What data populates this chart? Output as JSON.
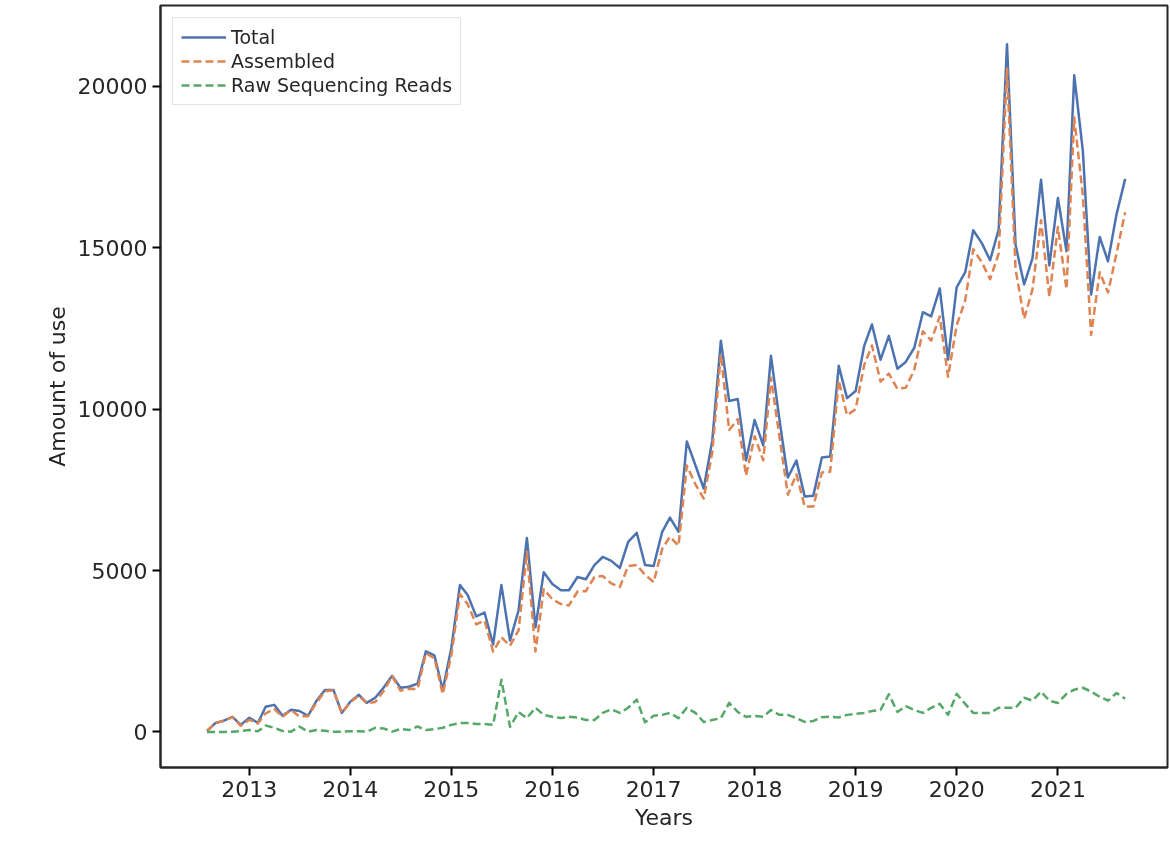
{
  "chart_data": {
    "type": "line",
    "xlabel": "Years",
    "ylabel": "Amount of use",
    "x": [
      "2012-08",
      "2012-09",
      "2012-10",
      "2012-11",
      "2012-12",
      "2013-01",
      "2013-02",
      "2013-03",
      "2013-04",
      "2013-05",
      "2013-06",
      "2013-07",
      "2013-08",
      "2013-09",
      "2013-10",
      "2013-11",
      "2013-12",
      "2014-01",
      "2014-02",
      "2014-03",
      "2014-04",
      "2014-05",
      "2014-06",
      "2014-07",
      "2014-08",
      "2014-09",
      "2014-10",
      "2014-11",
      "2014-12",
      "2015-01",
      "2015-02",
      "2015-03",
      "2015-04",
      "2015-05",
      "2015-06",
      "2015-07",
      "2015-08",
      "2015-09",
      "2015-10",
      "2015-11",
      "2015-12",
      "2016-01",
      "2016-02",
      "2016-03",
      "2016-04",
      "2016-05",
      "2016-06",
      "2016-07",
      "2016-08",
      "2016-09",
      "2016-10",
      "2016-11",
      "2016-12",
      "2017-01",
      "2017-02",
      "2017-03",
      "2017-04",
      "2017-05",
      "2017-06",
      "2017-07",
      "2017-08",
      "2017-09",
      "2017-10",
      "2017-11",
      "2017-12",
      "2018-01",
      "2018-02",
      "2018-03",
      "2018-04",
      "2018-05",
      "2018-06",
      "2018-07",
      "2018-08",
      "2018-09",
      "2018-10",
      "2018-11",
      "2018-12",
      "2019-01",
      "2019-02",
      "2019-03",
      "2019-04",
      "2019-05",
      "2019-06",
      "2019-07",
      "2019-08",
      "2019-09",
      "2019-10",
      "2019-11",
      "2019-12",
      "2020-01",
      "2020-02",
      "2020-03",
      "2020-04",
      "2020-05",
      "2020-06",
      "2020-07",
      "2020-08",
      "2020-09",
      "2020-10",
      "2020-11",
      "2020-12",
      "2021-01",
      "2021-02",
      "2021-03",
      "2021-04",
      "2021-05",
      "2021-06",
      "2021-07",
      "2021-08",
      "2021-09"
    ],
    "series": [
      {
        "name": "Total",
        "color": "#4c72b0",
        "line_style": "solid",
        "values": [
          30,
          280,
          350,
          470,
          220,
          440,
          280,
          780,
          840,
          500,
          690,
          650,
          500,
          970,
          1300,
          1300,
          590,
          940,
          1150,
          900,
          1060,
          1370,
          1740,
          1370,
          1400,
          1500,
          2500,
          2370,
          1300,
          2600,
          4550,
          4240,
          3580,
          3700,
          2710,
          4550,
          2830,
          3770,
          6010,
          3240,
          4950,
          4580,
          4390,
          4390,
          4800,
          4730,
          5170,
          5420,
          5300,
          5080,
          5890,
          6170,
          5170,
          5140,
          6200,
          6640,
          6200,
          9000,
          8260,
          7540,
          9030,
          12120,
          10250,
          10310,
          8410,
          9660,
          8880,
          11650,
          9660,
          7880,
          8410,
          7290,
          7320,
          8500,
          8530,
          11340,
          10340,
          10560,
          11960,
          12620,
          11530,
          12270,
          11250,
          11460,
          11900,
          13000,
          12870,
          13740,
          11530,
          13770,
          14240,
          15540,
          15140,
          14610,
          15570,
          21300,
          15080,
          13860,
          14670,
          17100,
          14450,
          16540,
          14890,
          20340,
          18000,
          13550,
          15330,
          14580,
          16040,
          17130
        ]
      },
      {
        "name": "Assembled",
        "color": "#dd8452",
        "line_style": "dashed",
        "values": [
          30,
          280,
          350,
          460,
          190,
          380,
          260,
          580,
          710,
          470,
          680,
          480,
          490,
          910,
          1260,
          1290,
          580,
          920,
          1130,
          890,
          930,
          1260,
          1730,
          1280,
          1340,
          1330,
          2440,
          2280,
          1170,
          2380,
          4270,
          3960,
          3330,
          3450,
          2490,
          2930,
          2670,
          3150,
          5580,
          2490,
          4420,
          4110,
          3960,
          3920,
          4350,
          4360,
          4800,
          4830,
          4600,
          4490,
          5140,
          5170,
          4870,
          4640,
          5670,
          6050,
          5770,
          8250,
          7670,
          7230,
          8660,
          11690,
          9350,
          9690,
          7940,
          9160,
          8410,
          10970,
          9130,
          7350,
          7980,
          6980,
          6980,
          8040,
          8060,
          10890,
          9810,
          10000,
          11370,
          11970,
          10850,
          11100,
          10630,
          10660,
          11220,
          12410,
          12120,
          12870,
          11000,
          12590,
          13370,
          14950,
          14550,
          14020,
          14820,
          20550,
          14330,
          12800,
          13700,
          15850,
          13480,
          15640,
          13710,
          19030,
          16630,
          12300,
          14240,
          13610,
          14830,
          16100
        ]
      },
      {
        "name": "Raw Sequencing Reads",
        "color": "#55a868",
        "line_style": "dashed",
        "values": [
          0,
          0,
          0,
          10,
          30,
          60,
          20,
          200,
          130,
          30,
          10,
          170,
          10,
          60,
          40,
          10,
          10,
          20,
          20,
          10,
          130,
          110,
          10,
          90,
          60,
          170,
          60,
          90,
          130,
          220,
          280,
          280,
          250,
          250,
          220,
          1620,
          160,
          620,
          430,
          750,
          530,
          470,
          430,
          470,
          450,
          370,
          370,
          590,
          700,
          590,
          750,
          1000,
          300,
          500,
          530,
          590,
          430,
          750,
          590,
          310,
          370,
          430,
          900,
          620,
          470,
          500,
          470,
          680,
          530,
          530,
          430,
          310,
          340,
          460,
          470,
          450,
          530,
          560,
          590,
          650,
          680,
          1170,
          620,
          800,
          680,
          590,
          750,
          870,
          530,
          1180,
          870,
          590,
          590,
          590,
          750,
          750,
          750,
          1060,
          970,
          1250,
          970,
          900,
          1180,
          1310,
          1370,
          1250,
          1090,
          970,
          1210,
          1030
        ]
      }
    ],
    "xlim": [
      "2012-02-15",
      "2022-02-01"
    ],
    "xticks": [
      "2013",
      "2014",
      "2015",
      "2016",
      "2017",
      "2018",
      "2019",
      "2020",
      "2021"
    ],
    "ylim": [
      -1100,
      22500
    ],
    "yticks": [
      0,
      5000,
      10000,
      15000,
      20000
    ],
    "grid": false,
    "legend": "top left"
  }
}
